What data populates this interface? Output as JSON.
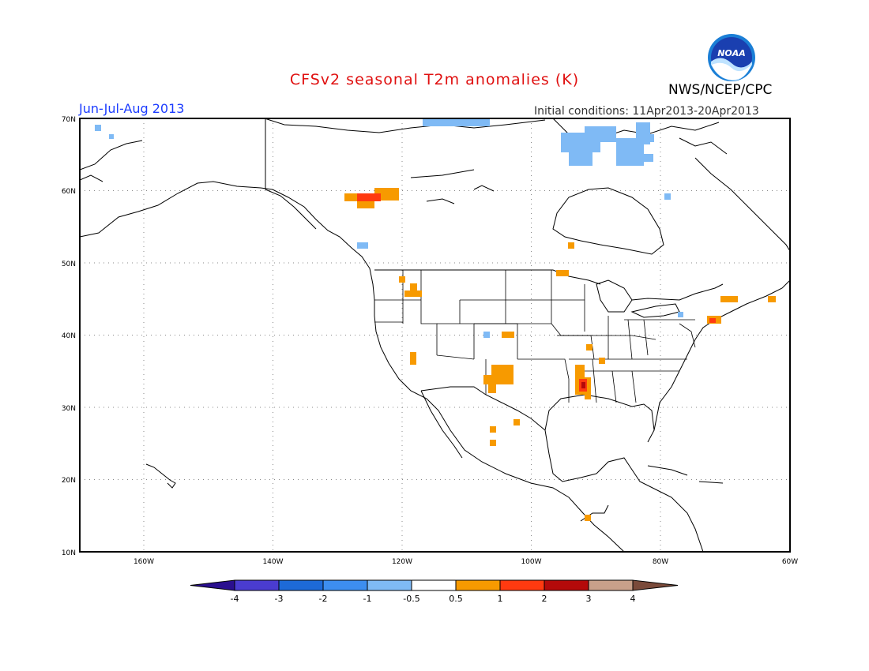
{
  "header": {
    "title": "CFSv2 seasonal T2m anomalies (K)",
    "agency": "NWS/NCEP/CPC",
    "logo_text": "NOAA",
    "season": "Jun-Jul-Aug 2013",
    "initial_conditions": "Initial conditions: 11Apr2013-20Apr2013"
  },
  "map": {
    "lat_labels": [
      "10N",
      "20N",
      "30N",
      "40N",
      "50N",
      "60N",
      "70N"
    ],
    "lon_labels": [
      "160W",
      "140W",
      "120W",
      "100W",
      "80W",
      "60W"
    ]
  },
  "colorbar": {
    "labels": [
      "-4",
      "-3",
      "-2",
      "-1",
      "-0.5",
      "0.5",
      "1",
      "2",
      "3",
      "4"
    ],
    "colors": [
      "#2a0f8f",
      "#4a3cd0",
      "#1d6ad8",
      "#3d8ef0",
      "#7fbaf5",
      "#ffffff",
      "#f79a00",
      "#ff3a10",
      "#b40a0a",
      "#c9a08a",
      "#7a4a3a"
    ]
  },
  "anomalies": {
    "colors": {
      "light_blue": "#7fbaf5",
      "orange": "#f79a00",
      "red": "#ff3a10",
      "dark_red": "#b40a0a"
    }
  }
}
